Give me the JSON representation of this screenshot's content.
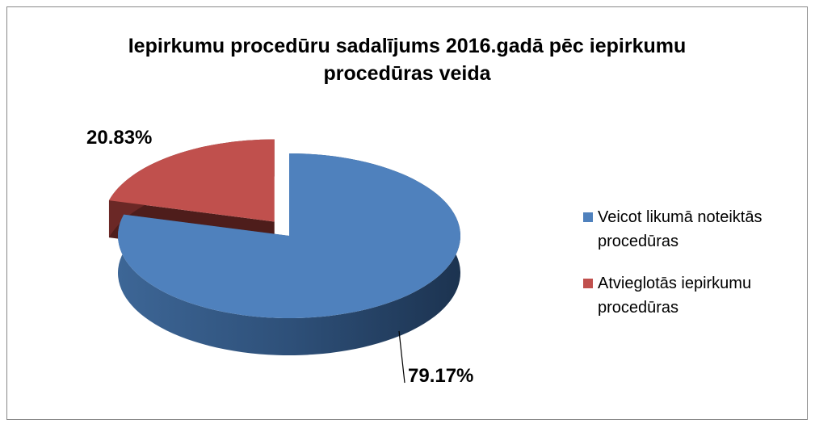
{
  "chart_data": {
    "type": "pie",
    "title": "Iepirkumu procedūru sadalījums 2016.gadā pēc iepirkumu procedūras veida",
    "categories": [
      "Veicot likumā noteiktās procedūras",
      "Atvieglotās iepirkumu procedūras"
    ],
    "values": [
      79.17,
      20.83
    ],
    "value_labels": [
      "79.17%",
      "20.83%"
    ],
    "colors": [
      "#4f81bd",
      "#c0504d"
    ],
    "legend": "right"
  }
}
